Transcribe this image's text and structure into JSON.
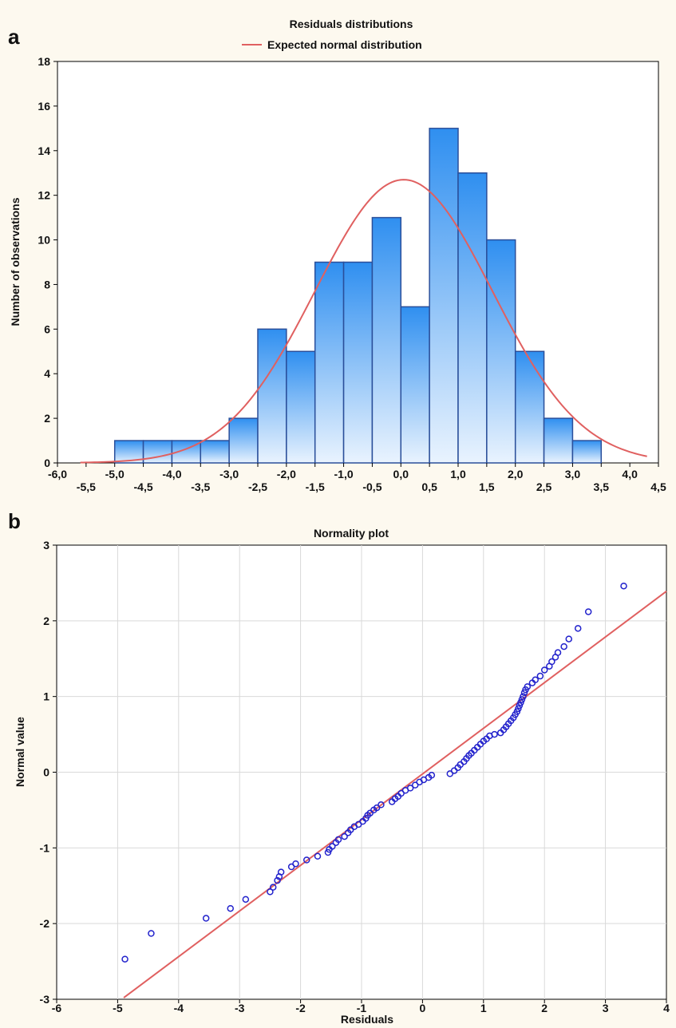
{
  "colors": {
    "background": "#fdf9ef",
    "plot_background": "#ffffff",
    "bar_fill_top": "#2f8ff0",
    "bar_fill_bottom": "#e9f3fe",
    "bar_stroke": "#2a4f9a",
    "curve": "#e06060",
    "points": "#2222cc",
    "grid": "#d9d9d9"
  },
  "panels": {
    "a": {
      "letter": "a"
    },
    "b": {
      "letter": "b"
    }
  },
  "chart_data": [
    {
      "type": "bar",
      "panel": "a",
      "title": "Residuals distributions",
      "ylabel": "Number of observations",
      "xlabel": "",
      "xlim": [
        -6.0,
        4.5
      ],
      "ylim": [
        0,
        18
      ],
      "yticks": [
        0,
        2,
        4,
        6,
        8,
        10,
        12,
        14,
        16,
        18
      ],
      "xtick_labels_upper": [
        "-6,0",
        "-5,0",
        "-4,0",
        "-3,0",
        "-2,0",
        "-1,0",
        "0,0",
        "1,0",
        "2,0",
        "3,0",
        "4,0"
      ],
      "xtick_labels_lower": [
        "-5,5",
        "-4,5",
        "-3,5",
        "-2,5",
        "-1,5",
        "-0,5",
        "0,5",
        "1,5",
        "2,5",
        "3,5",
        "4,5"
      ],
      "bin_edges": [
        -5.0,
        -4.5,
        -4.0,
        -3.5,
        -3.0,
        -2.5,
        -2.0,
        -1.5,
        -1.0,
        -0.5,
        0.0,
        0.5,
        1.0,
        1.5,
        2.0,
        2.5,
        3.0,
        3.5
      ],
      "values": [
        1,
        1,
        1,
        1,
        2,
        6,
        5,
        9,
        9,
        11,
        7,
        15,
        13,
        10,
        5,
        2,
        1
      ],
      "series": [
        {
          "name": "Expected normal distribution",
          "type": "line",
          "mean": 0.05,
          "peak": 12.7,
          "sd": 1.55,
          "x_range": [
            -5.6,
            4.3
          ]
        }
      ],
      "legend": "top-center",
      "grid": false
    },
    {
      "type": "scatter",
      "panel": "b",
      "title": "Normality plot",
      "xlabel": "Residuals",
      "ylabel": "Normal value",
      "xlim": [
        -6,
        4
      ],
      "ylim": [
        -3,
        3
      ],
      "xticks": [
        -6,
        -5,
        -4,
        -3,
        -2,
        -1,
        0,
        1,
        2,
        3,
        4
      ],
      "yticks": [
        -3,
        -2,
        -1,
        0,
        1,
        2,
        3
      ],
      "grid": true,
      "reference_line": {
        "x": [
          -4.9,
          4.0
        ],
        "y": [
          -2.98,
          2.39
        ]
      },
      "points": [
        [
          -4.88,
          -2.47
        ],
        [
          -4.45,
          -2.13
        ],
        [
          -3.55,
          -1.93
        ],
        [
          -3.15,
          -1.8
        ],
        [
          -2.9,
          -1.68
        ],
        [
          -2.5,
          -1.58
        ],
        [
          -2.45,
          -1.52
        ],
        [
          -2.38,
          -1.43
        ],
        [
          -2.35,
          -1.38
        ],
        [
          -2.32,
          -1.32
        ],
        [
          -2.15,
          -1.25
        ],
        [
          -2.08,
          -1.21
        ],
        [
          -1.9,
          -1.16
        ],
        [
          -1.72,
          -1.11
        ],
        [
          -1.55,
          -1.06
        ],
        [
          -1.53,
          -1.02
        ],
        [
          -1.48,
          -0.98
        ],
        [
          -1.42,
          -0.93
        ],
        [
          -1.38,
          -0.89
        ],
        [
          -1.28,
          -0.85
        ],
        [
          -1.22,
          -0.8
        ],
        [
          -1.18,
          -0.76
        ],
        [
          -1.12,
          -0.72
        ],
        [
          -1.05,
          -0.69
        ],
        [
          -0.98,
          -0.65
        ],
        [
          -0.93,
          -0.61
        ],
        [
          -0.9,
          -0.57
        ],
        [
          -0.86,
          -0.54
        ],
        [
          -0.8,
          -0.5
        ],
        [
          -0.75,
          -0.47
        ],
        [
          -0.68,
          -0.43
        ],
        [
          -0.5,
          -0.39
        ],
        [
          -0.45,
          -0.35
        ],
        [
          -0.4,
          -0.32
        ],
        [
          -0.35,
          -0.28
        ],
        [
          -0.28,
          -0.24
        ],
        [
          -0.2,
          -0.21
        ],
        [
          -0.12,
          -0.17
        ],
        [
          -0.05,
          -0.13
        ],
        [
          0.02,
          -0.1
        ],
        [
          0.1,
          -0.07
        ],
        [
          0.15,
          -0.04
        ],
        [
          0.45,
          -0.02
        ],
        [
          0.52,
          0.02
        ],
        [
          0.58,
          0.06
        ],
        [
          0.62,
          0.1
        ],
        [
          0.68,
          0.14
        ],
        [
          0.72,
          0.18
        ],
        [
          0.76,
          0.22
        ],
        [
          0.8,
          0.25
        ],
        [
          0.85,
          0.29
        ],
        [
          0.9,
          0.33
        ],
        [
          0.95,
          0.37
        ],
        [
          1.0,
          0.41
        ],
        [
          1.05,
          0.44
        ],
        [
          1.1,
          0.48
        ],
        [
          1.18,
          0.5
        ],
        [
          1.28,
          0.52
        ],
        [
          1.33,
          0.56
        ],
        [
          1.37,
          0.6
        ],
        [
          1.41,
          0.64
        ],
        [
          1.45,
          0.68
        ],
        [
          1.49,
          0.72
        ],
        [
          1.52,
          0.76
        ],
        [
          1.55,
          0.8
        ],
        [
          1.57,
          0.84
        ],
        [
          1.59,
          0.88
        ],
        [
          1.61,
          0.92
        ],
        [
          1.63,
          0.96
        ],
        [
          1.65,
          1.0
        ],
        [
          1.67,
          1.05
        ],
        [
          1.69,
          1.09
        ],
        [
          1.72,
          1.13
        ],
        [
          1.8,
          1.18
        ],
        [
          1.85,
          1.22
        ],
        [
          1.93,
          1.27
        ],
        [
          2.0,
          1.35
        ],
        [
          2.08,
          1.4
        ],
        [
          2.12,
          1.46
        ],
        [
          2.18,
          1.52
        ],
        [
          2.22,
          1.58
        ],
        [
          2.32,
          1.66
        ],
        [
          2.4,
          1.76
        ],
        [
          2.55,
          1.9
        ],
        [
          2.72,
          2.12
        ],
        [
          3.3,
          2.46
        ]
      ]
    }
  ]
}
